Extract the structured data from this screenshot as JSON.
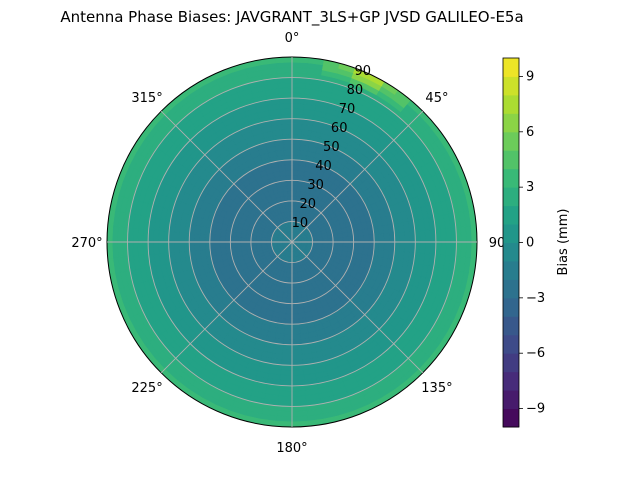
{
  "chart_data": {
    "type": "heatmap",
    "title": "Antenna Phase Biases: JAVGRANT_3LS+GP JVSD GALILEO-E5a",
    "projection": "polar",
    "theta_direction": "clockwise",
    "theta_zero": "top",
    "azimuth_tick_labels": [
      "0°",
      "45°",
      "90",
      "135°",
      "180°",
      "225°",
      "270°",
      "315°"
    ],
    "azimuth_ticks_deg": [
      0,
      45,
      90,
      135,
      180,
      225,
      270,
      315
    ],
    "radial_ticks": [
      10,
      20,
      30,
      40,
      50,
      60,
      70,
      80,
      90
    ],
    "radial_tick_labels": [
      "10",
      "20",
      "30",
      "40",
      "50",
      "60",
      "70",
      "80",
      "90"
    ],
    "rlim": [
      0,
      90
    ],
    "grid": true,
    "colorbar": {
      "label": "Bias (mm)",
      "colormap": "viridis",
      "range": [
        -10,
        10
      ],
      "ticks": [
        -9,
        -6,
        -3,
        0,
        3,
        6,
        9
      ],
      "tick_labels": [
        "−9",
        "−6",
        "−3",
        "0",
        "3",
        "6",
        "9"
      ],
      "levels": 20
    },
    "bias_by_zenith": {
      "zenith_deg": [
        0,
        10,
        20,
        30,
        40,
        50,
        60,
        70,
        80,
        90
      ],
      "bias_mm": [
        -1.5,
        -2.0,
        -2.5,
        -2.5,
        -2.0,
        -1.0,
        0.0,
        1.0,
        2.0,
        3.5
      ]
    },
    "high_bias_region": {
      "azimuth_deg": [
        10,
        40
      ],
      "zenith_deg": [
        80,
        90
      ],
      "bias_mm": 9
    }
  }
}
